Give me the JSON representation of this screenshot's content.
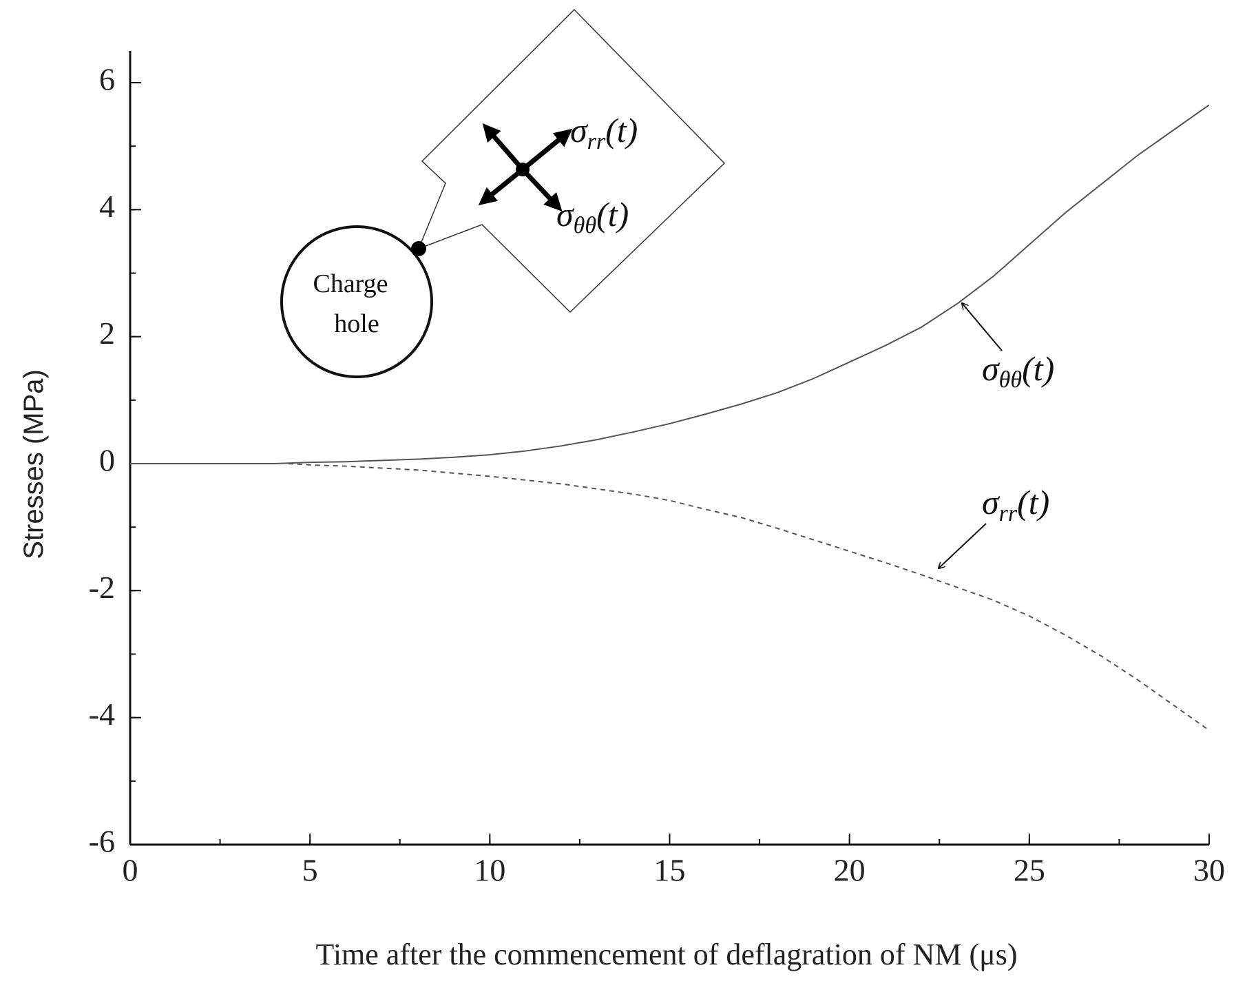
{
  "chart_data": {
    "type": "line",
    "x_label": "Time after the commencement of  deflagration of NM (μs)",
    "y_label": "Stresses  (MPa)",
    "xlim": [
      0,
      30
    ],
    "xticks": [
      0,
      5,
      10,
      15,
      20,
      25,
      30
    ],
    "x_minor_step": 2.5,
    "ylim": [
      -6,
      6
    ],
    "yticks": [
      -6,
      -4,
      -2,
      0,
      2,
      4,
      6
    ],
    "y_minor_step": 1,
    "series": [
      {
        "color": "#555555",
        "dash": false,
        "x": [
          0,
          2,
          4,
          5,
          6,
          7,
          8,
          9,
          10,
          11,
          12,
          13,
          14,
          15,
          16,
          17,
          18,
          19,
          20,
          21,
          22,
          23,
          24,
          25,
          26,
          27,
          28,
          29,
          30
        ],
        "values": [
          0,
          0,
          0,
          0.02,
          0.03,
          0.05,
          0.07,
          0.1,
          0.14,
          0.2,
          0.28,
          0.38,
          0.5,
          0.63,
          0.78,
          0.94,
          1.12,
          1.34,
          1.6,
          1.86,
          2.15,
          2.52,
          2.95,
          3.45,
          3.95,
          4.4,
          4.85,
          5.25,
          5.65
        ]
      },
      {
        "color": "#555555",
        "dash": true,
        "x": [
          4.4,
          5,
          6,
          7,
          8,
          9,
          10,
          11,
          12,
          13,
          14,
          15,
          16,
          17,
          18,
          19,
          20,
          21,
          22,
          23,
          24,
          25,
          26,
          27,
          28,
          29,
          30
        ],
        "values": [
          0,
          -0.02,
          -0.04,
          -0.07,
          -0.1,
          -0.15,
          -0.2,
          -0.26,
          -0.32,
          -0.4,
          -0.48,
          -0.58,
          -0.72,
          -0.85,
          -1.02,
          -1.2,
          -1.38,
          -1.56,
          -1.75,
          -1.95,
          -2.15,
          -2.4,
          -2.7,
          -3.03,
          -3.4,
          -3.8,
          -4.2
        ]
      }
    ],
    "annotations": [
      {
        "base": "σ",
        "sub": "θθ",
        "suffix": "(t)"
      },
      {
        "base": "σ",
        "sub": "rr",
        "suffix": "(t)"
      }
    ],
    "inset": {
      "hole_line1": "Charge",
      "hole_line2": "hole",
      "labels": [
        {
          "base": "σ",
          "sub": "rr",
          "suffix": "(t)"
        },
        {
          "base": "σ",
          "sub": "θθ",
          "suffix": "(t)"
        }
      ]
    }
  }
}
